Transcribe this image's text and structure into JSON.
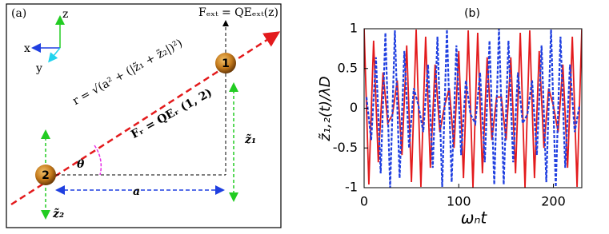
{
  "diagram": {
    "panel_label": "(a)",
    "axis_z": "z",
    "axis_x": "x",
    "axis_y": "y",
    "external_force": "Fₑₓₜ = QEₑₓₜ(z)",
    "particle_1": "1",
    "particle_2": "2",
    "distance": "r = √(a² + (|z̃₁ + z̃₂|)²)",
    "repulsive_force": "Fᵣ = QEᵣ (1, 2)",
    "angle": "θ",
    "separation": "a",
    "z1": "z̃₁",
    "z2": "z̃₂"
  },
  "chart_data": {
    "type": "line",
    "title": "(b)",
    "xlabel": "ωₙt",
    "ylabel": "z̃₁,₂(t)/λD",
    "xlim": [
      0,
      230
    ],
    "ylim": [
      -1,
      1
    ],
    "xticks": [
      0,
      100,
      200
    ],
    "yticks": [
      -1,
      -0.5,
      0,
      0.5,
      1
    ],
    "series": [
      {
        "color": "#e31a1c",
        "dash": false,
        "x": [
          0,
          5,
          10,
          15,
          20,
          25,
          30,
          35,
          40,
          45,
          50,
          55,
          60,
          65,
          70,
          75,
          80,
          85,
          90,
          95,
          100,
          105,
          110,
          115,
          120,
          125,
          130,
          135,
          140,
          145,
          150,
          155,
          160,
          165,
          170,
          175,
          180,
          185,
          190,
          195,
          200,
          205,
          210,
          215,
          220,
          225,
          230
        ],
        "values": [
          1,
          -0.96,
          0.85,
          -0.68,
          0.45,
          -0.19,
          -0.08,
          0.35,
          -0.59,
          0.79,
          -0.93,
          0.99,
          -0.99,
          0.9,
          -0.75,
          0.55,
          -0.3,
          0.03,
          0.25,
          -0.5,
          0.72,
          -0.88,
          0.98,
          -1,
          0.95,
          -0.82,
          0.64,
          -0.4,
          0.14,
          0.14,
          -0.4,
          0.64,
          -0.82,
          0.95,
          -1,
          0.98,
          -0.88,
          0.72,
          -0.5,
          0.25,
          0.03,
          -0.3,
          0.55,
          -0.75,
          0.9,
          -0.99,
          0.99
        ]
      },
      {
        "color": "#1f3fe0",
        "dash": true,
        "x": [
          2.5,
          7.5,
          12.5,
          17.5,
          22.5,
          27.5,
          32.5,
          37.5,
          42.5,
          47.5,
          52.5,
          57.5,
          62.5,
          67.5,
          72.5,
          77.5,
          82.5,
          87.5,
          92.5,
          97.5,
          102.5,
          107.5,
          112.5,
          117.5,
          122.5,
          127.5,
          132.5,
          137.5,
          142.5,
          147.5,
          152.5,
          157.5,
          162.5,
          167.5,
          172.5,
          177.5,
          182.5,
          187.5,
          192.5,
          197.5,
          202.5,
          207.5,
          212.5,
          217.5,
          222.5,
          227.5
        ],
        "values": [
          0.14,
          -0.4,
          0.64,
          -0.82,
          0.95,
          -1,
          0.98,
          -0.88,
          0.72,
          -0.5,
          0.25,
          0.03,
          -0.3,
          0.55,
          -0.75,
          0.9,
          -0.99,
          0.99,
          -0.93,
          0.79,
          -0.59,
          0.35,
          -0.08,
          -0.19,
          0.45,
          -0.68,
          0.85,
          -0.96,
          1,
          -0.96,
          0.85,
          -0.68,
          0.45,
          -0.19,
          -0.08,
          0.35,
          -0.59,
          0.79,
          -0.93,
          0.99,
          -0.99,
          0.9,
          -0.75,
          0.55,
          -0.3,
          0.03
        ]
      }
    ]
  }
}
